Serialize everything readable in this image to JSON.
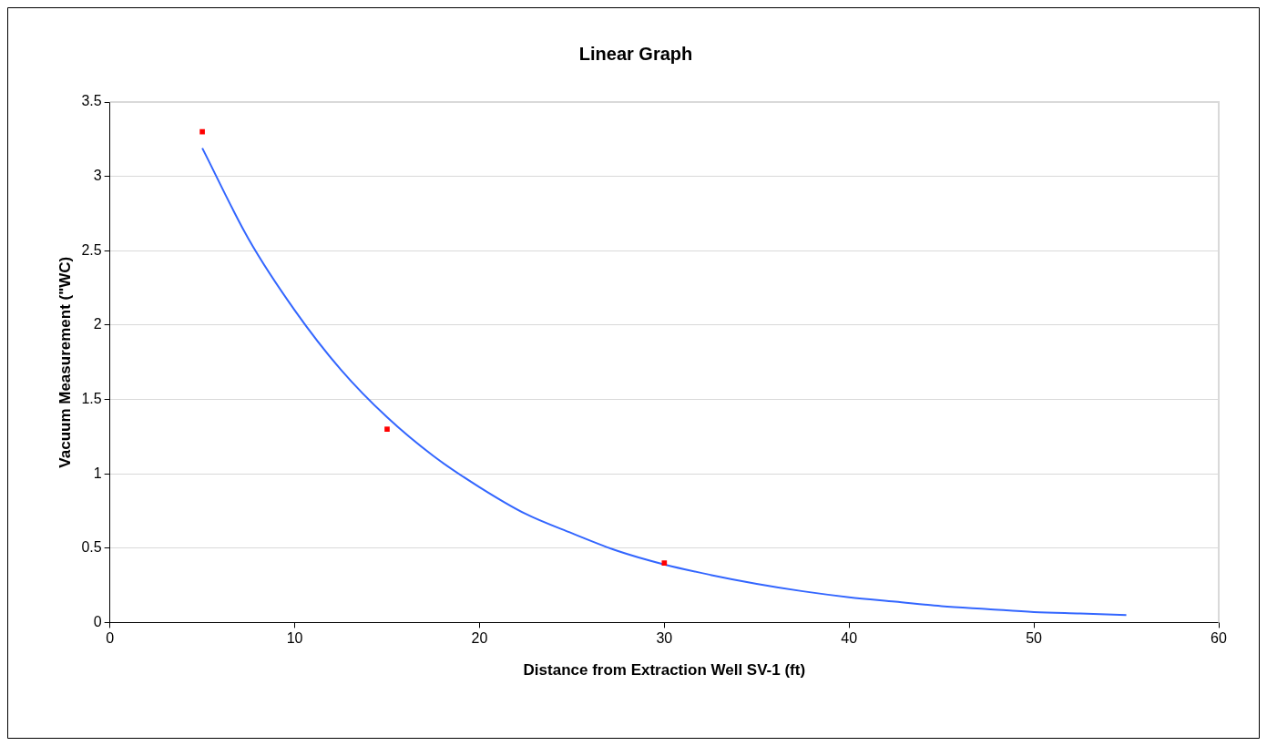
{
  "chart_data": {
    "type": "scatter",
    "title": "Linear Graph",
    "xlabel": "Distance from Extraction Well SV-1 (ft)",
    "ylabel": "Vacuum Measurement (\"WC)",
    "xlim": [
      0,
      60
    ],
    "xticks": [
      0,
      10,
      20,
      30,
      40,
      50,
      60
    ],
    "ylim": [
      0,
      3.5
    ],
    "yticks": [
      0,
      0.5,
      1,
      1.5,
      2,
      2.5,
      3,
      3.5
    ],
    "grid": "y",
    "legend": false,
    "series": [
      {
        "type": "scatter",
        "color": "#ff0000",
        "marker": "square",
        "x": [
          5,
          15,
          30
        ],
        "values": [
          3.3,
          1.3,
          0.4
        ]
      },
      {
        "type": "line",
        "color": "#3366ff",
        "marker": "none",
        "line_style": "solid",
        "x": [
          5,
          7.5,
          10,
          12.5,
          15,
          17.5,
          20,
          22.5,
          25,
          27.5,
          30,
          32.5,
          35,
          37.5,
          40,
          42.5,
          45,
          47.5,
          50,
          52.5,
          55
        ],
        "values": [
          3.19,
          2.58,
          2.1,
          1.7,
          1.38,
          1.12,
          0.91,
          0.73,
          0.6,
          0.48,
          0.39,
          0.32,
          0.26,
          0.21,
          0.17,
          0.14,
          0.11,
          0.09,
          0.07,
          0.06,
          0.05
        ]
      }
    ]
  }
}
